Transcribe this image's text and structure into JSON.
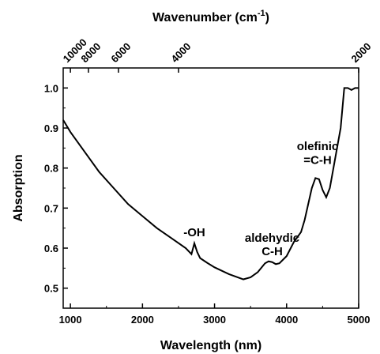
{
  "chart_data": {
    "type": "line",
    "xlabel": "Wavelength (nm)",
    "ylabel": "Absorption",
    "top_axis_label_main": "Wavenumber (cm",
    "top_axis_label_sup": "-1",
    "top_axis_label_end": ")",
    "xlim": [
      900,
      5000
    ],
    "ylim": [
      0.45,
      1.05
    ],
    "x_ticks": [
      1000,
      2000,
      3000,
      4000,
      5000
    ],
    "y_ticks": [
      0.5,
      0.6,
      0.7,
      0.8,
      0.9,
      1.0
    ],
    "y_tick_labels": [
      "0.5",
      "0.6",
      "0.7",
      "0.8",
      "0.9",
      "1.0"
    ],
    "top_ticks_wavenumber": [
      10000,
      8000,
      6000,
      4000,
      2000
    ],
    "annotations": [
      {
        "text": "-OH",
        "x": 2720,
        "y": 0.63
      },
      {
        "text": "aldehydic",
        "x": 3800,
        "y": 0.616
      },
      {
        "text": "C-H",
        "x": 3800,
        "y": 0.582
      },
      {
        "text": "olefinic",
        "x": 4430,
        "y": 0.845
      },
      {
        "text": "=C-H",
        "x": 4430,
        "y": 0.81
      }
    ],
    "series": [
      {
        "x": [
          900,
          1000,
          1200,
          1400,
          1600,
          1800,
          2000,
          2200,
          2400,
          2600,
          2680,
          2720,
          2760,
          2800,
          2900,
          3000,
          3200,
          3400,
          3500,
          3600,
          3700,
          3750,
          3800,
          3850,
          3900,
          4000,
          4100,
          4200,
          4250,
          4300,
          4350,
          4400,
          4450,
          4500,
          4550,
          4600,
          4650,
          4700,
          4750,
          4800,
          4850,
          4900,
          4950,
          5000
        ],
        "y": [
          0.92,
          0.89,
          0.84,
          0.79,
          0.75,
          0.71,
          0.68,
          0.65,
          0.625,
          0.6,
          0.585,
          0.612,
          0.59,
          0.575,
          0.563,
          0.552,
          0.535,
          0.522,
          0.527,
          0.54,
          0.562,
          0.567,
          0.565,
          0.56,
          0.562,
          0.58,
          0.615,
          0.64,
          0.67,
          0.71,
          0.75,
          0.775,
          0.772,
          0.745,
          0.727,
          0.75,
          0.8,
          0.85,
          0.9,
          1.0,
          1.0,
          0.995,
          1.0,
          1.0
        ]
      }
    ]
  }
}
